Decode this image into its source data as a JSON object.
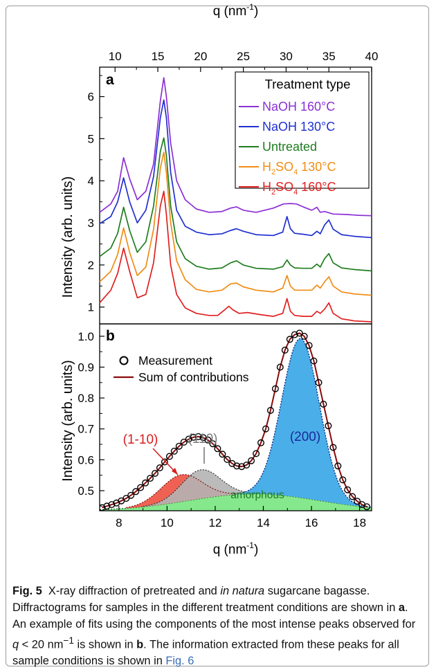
{
  "chart_data": [
    {
      "panel": "a",
      "type": "line",
      "panel_label": "a",
      "xlabel": "q (nm",
      "xlabel_sup": "-1",
      "xlabel_tail": ")",
      "ylabel": "Intensity (arb. units)",
      "xlim": [
        8.2,
        40
      ],
      "ylim": [
        0.6,
        6.7
      ],
      "xticks": [
        10,
        15,
        20,
        25,
        30,
        35,
        40
      ],
      "yticks": [
        1,
        2,
        3,
        4,
        5,
        6
      ],
      "legend_title": "Treatment type",
      "legend_position": "top-right",
      "series": [
        {
          "name": "NaOH 160°C",
          "color": "#8b2fd4",
          "x": [
            8.2,
            9.5,
            10.3,
            11.0,
            11.7,
            12.6,
            13.6,
            14.5,
            15.3,
            15.7,
            16.0,
            16.5,
            17.2,
            18.2,
            19.5,
            21.0,
            22.5,
            23.5,
            24.2,
            25.0,
            26.5,
            28.5,
            29.7,
            30.5,
            31.2,
            32.0,
            33.0,
            33.6,
            34.0,
            34.5,
            35.5,
            37.0,
            38.5,
            40.0
          ],
          "y": [
            3.25,
            3.45,
            3.75,
            4.55,
            4.05,
            3.55,
            3.75,
            4.4,
            5.9,
            6.45,
            6.0,
            4.9,
            4.0,
            3.55,
            3.33,
            3.25,
            3.27,
            3.35,
            3.38,
            3.3,
            3.25,
            3.35,
            3.45,
            3.46,
            3.45,
            3.38,
            3.3,
            3.37,
            3.25,
            3.27,
            3.21,
            3.2,
            3.18,
            3.17
          ]
        },
        {
          "name": "NaOH 130°C",
          "color": "#1f2fd0",
          "x": [
            8.2,
            9.5,
            10.3,
            11.0,
            11.7,
            12.6,
            13.6,
            14.5,
            15.3,
            15.7,
            16.0,
            16.5,
            17.2,
            18.2,
            19.5,
            21.0,
            22.5,
            23.5,
            24.2,
            25.0,
            26.5,
            28.5,
            29.6,
            30.1,
            30.5,
            31.0,
            32.0,
            33.0,
            33.6,
            34.0,
            34.5,
            35.0,
            35.5,
            36.5,
            38.0,
            40.0
          ],
          "y": [
            2.98,
            3.15,
            3.5,
            4.07,
            3.5,
            3.0,
            3.3,
            4.1,
            5.5,
            5.92,
            5.5,
            4.2,
            3.3,
            2.92,
            2.78,
            2.72,
            2.74,
            2.82,
            2.86,
            2.8,
            2.72,
            2.7,
            2.78,
            3.15,
            2.86,
            2.75,
            2.73,
            2.7,
            2.8,
            2.74,
            2.95,
            3.07,
            2.85,
            2.72,
            2.68,
            2.65
          ]
        },
        {
          "name": "Untreated",
          "color": "#1e7d1e",
          "x": [
            8.2,
            9.5,
            10.3,
            11.0,
            11.7,
            12.6,
            13.6,
            14.5,
            15.3,
            15.7,
            16.0,
            16.5,
            17.2,
            18.2,
            19.5,
            21.0,
            22.5,
            23.5,
            24.2,
            25.0,
            26.5,
            28.5,
            29.6,
            30.1,
            30.5,
            31.0,
            32.0,
            33.0,
            33.6,
            34.0,
            34.5,
            35.0,
            35.5,
            36.5,
            38.0,
            40.0
          ],
          "y": [
            2.2,
            2.4,
            2.75,
            3.37,
            2.82,
            2.3,
            2.55,
            3.4,
            4.7,
            5.02,
            4.6,
            3.4,
            2.55,
            2.15,
            1.97,
            1.9,
            1.93,
            2.05,
            2.1,
            2.0,
            1.92,
            1.9,
            1.96,
            2.12,
            2.0,
            1.93,
            1.92,
            1.92,
            2.02,
            1.95,
            2.15,
            2.27,
            2.05,
            1.93,
            1.89,
            1.86
          ]
        },
        {
          "name": "H2SO4 130°C",
          "color": "#f08c14",
          "x": [
            8.2,
            9.5,
            10.3,
            11.0,
            11.7,
            12.6,
            13.6,
            14.5,
            15.3,
            15.7,
            16.0,
            16.5,
            17.2,
            18.2,
            19.5,
            21.0,
            22.5,
            23.5,
            24.2,
            25.0,
            26.5,
            28.5,
            29.6,
            30.1,
            30.5,
            31.0,
            32.0,
            33.0,
            33.6,
            34.0,
            34.5,
            35.0,
            35.5,
            36.5,
            38.0,
            40.0
          ],
          "y": [
            1.6,
            1.85,
            2.25,
            2.88,
            2.3,
            1.75,
            1.95,
            2.85,
            4.3,
            4.68,
            4.2,
            3.0,
            2.1,
            1.65,
            1.42,
            1.36,
            1.4,
            1.55,
            1.57,
            1.48,
            1.4,
            1.36,
            1.45,
            1.75,
            1.5,
            1.4,
            1.4,
            1.4,
            1.52,
            1.45,
            1.6,
            1.72,
            1.5,
            1.36,
            1.31,
            1.28
          ]
        },
        {
          "name": "H2SO4 160°C",
          "color": "#e01f1f",
          "x": [
            8.2,
            9.5,
            10.3,
            11.0,
            11.7,
            12.6,
            13.6,
            14.5,
            15.3,
            15.7,
            16.0,
            16.5,
            17.2,
            18.2,
            19.5,
            21.0,
            22.0,
            22.8,
            23.3,
            23.8,
            24.5,
            25.5,
            27.0,
            28.5,
            29.6,
            30.1,
            30.5,
            31.0,
            32.0,
            33.0,
            33.6,
            34.0,
            34.5,
            35.0,
            35.5,
            36.5,
            38.0,
            40.0
          ],
          "y": [
            1.1,
            1.4,
            1.8,
            2.4,
            1.85,
            1.22,
            1.3,
            2.05,
            3.4,
            3.75,
            3.2,
            2.0,
            1.3,
            0.98,
            0.85,
            0.8,
            0.8,
            0.93,
            1.02,
            0.93,
            0.85,
            0.87,
            0.82,
            0.78,
            0.85,
            1.2,
            0.9,
            0.8,
            0.78,
            0.78,
            0.9,
            0.85,
            0.95,
            1.1,
            0.85,
            0.72,
            0.67,
            0.65
          ]
        }
      ]
    },
    {
      "panel": "b",
      "type": "line",
      "panel_label": "b",
      "xlabel": "q (nm",
      "xlabel_sup": "-1",
      "xlabel_tail": ")",
      "ylabel": "Intensity (arb. units)",
      "xlim": [
        7.2,
        18.5
      ],
      "ylim": [
        0.435,
        1.04
      ],
      "xticks": [
        8,
        10,
        12,
        14,
        16,
        18
      ],
      "yticks": [
        0.5,
        0.6,
        0.7,
        0.8,
        0.9,
        1.0
      ],
      "legend_position": "left",
      "measurement_label": "Measurement",
      "sum_label": "Sum of contributions",
      "sum_color": "#8b0a0a",
      "component_labels": {
        "c1": "(1-10)",
        "c110": "(110)",
        "c200": "(200)",
        "amorph": "amorphous"
      },
      "label_colors": {
        "c1": "#d81e1e",
        "c110": "#7a7a7a",
        "c200": "#1a2a9a",
        "amorph": "#1d7a1d"
      },
      "fill_colors": {
        "c1": "#ee5a4a",
        "c110": "#b4b4b4",
        "c200": "#4aaee8",
        "amorph": "#86e88c"
      },
      "measurement_x": [
        7.3,
        7.5,
        7.7,
        7.9,
        8.1,
        8.3,
        8.5,
        8.7,
        8.9,
        9.1,
        9.3,
        9.5,
        9.7,
        9.9,
        10.1,
        10.3,
        10.5,
        10.7,
        10.9,
        11.1,
        11.3,
        11.5,
        11.7,
        11.9,
        12.1,
        12.3,
        12.5,
        12.7,
        12.9,
        13.1,
        13.3,
        13.5,
        13.7,
        13.9,
        14.1,
        14.3,
        14.5,
        14.7,
        14.9,
        15.1,
        15.3,
        15.5,
        15.7,
        15.9,
        16.1,
        16.3,
        16.5,
        16.7,
        16.9,
        17.1,
        17.3,
        17.5,
        17.7,
        17.9,
        18.1,
        18.3
      ],
      "measurement_y": [
        0.445,
        0.45,
        0.455,
        0.46,
        0.467,
        0.475,
        0.485,
        0.497,
        0.51,
        0.525,
        0.54,
        0.556,
        0.574,
        0.593,
        0.611,
        0.628,
        0.644,
        0.657,
        0.667,
        0.673,
        0.675,
        0.672,
        0.664,
        0.652,
        0.636,
        0.618,
        0.601,
        0.588,
        0.58,
        0.578,
        0.583,
        0.597,
        0.62,
        0.655,
        0.7,
        0.76,
        0.83,
        0.9,
        0.955,
        0.99,
        1.005,
        1.01,
        1.0,
        0.97,
        0.92,
        0.85,
        0.78,
        0.71,
        0.64,
        0.58,
        0.535,
        0.503,
        0.481,
        0.466,
        0.455,
        0.448
      ]
    }
  ],
  "caption": {
    "fig_label": "Fig. 5",
    "t1": "X-ray diffraction of pretreated and ",
    "t1_italic": "in natura",
    "t2": " sugarcane bagasse. Diffractograms for samples in the different treatment conditions are shown in ",
    "bold_a": "a",
    "t3": ". An example of fits using the components of the most intense peaks observed for ",
    "q_var": "q",
    "t4": " < 20 nm",
    "t4_sup": "−1",
    "t5": " is shown in ",
    "bold_b": "b",
    "t6": ". The information extracted from these peaks for all sample conditions is shown in ",
    "fig_ref": "Fig. 6"
  }
}
